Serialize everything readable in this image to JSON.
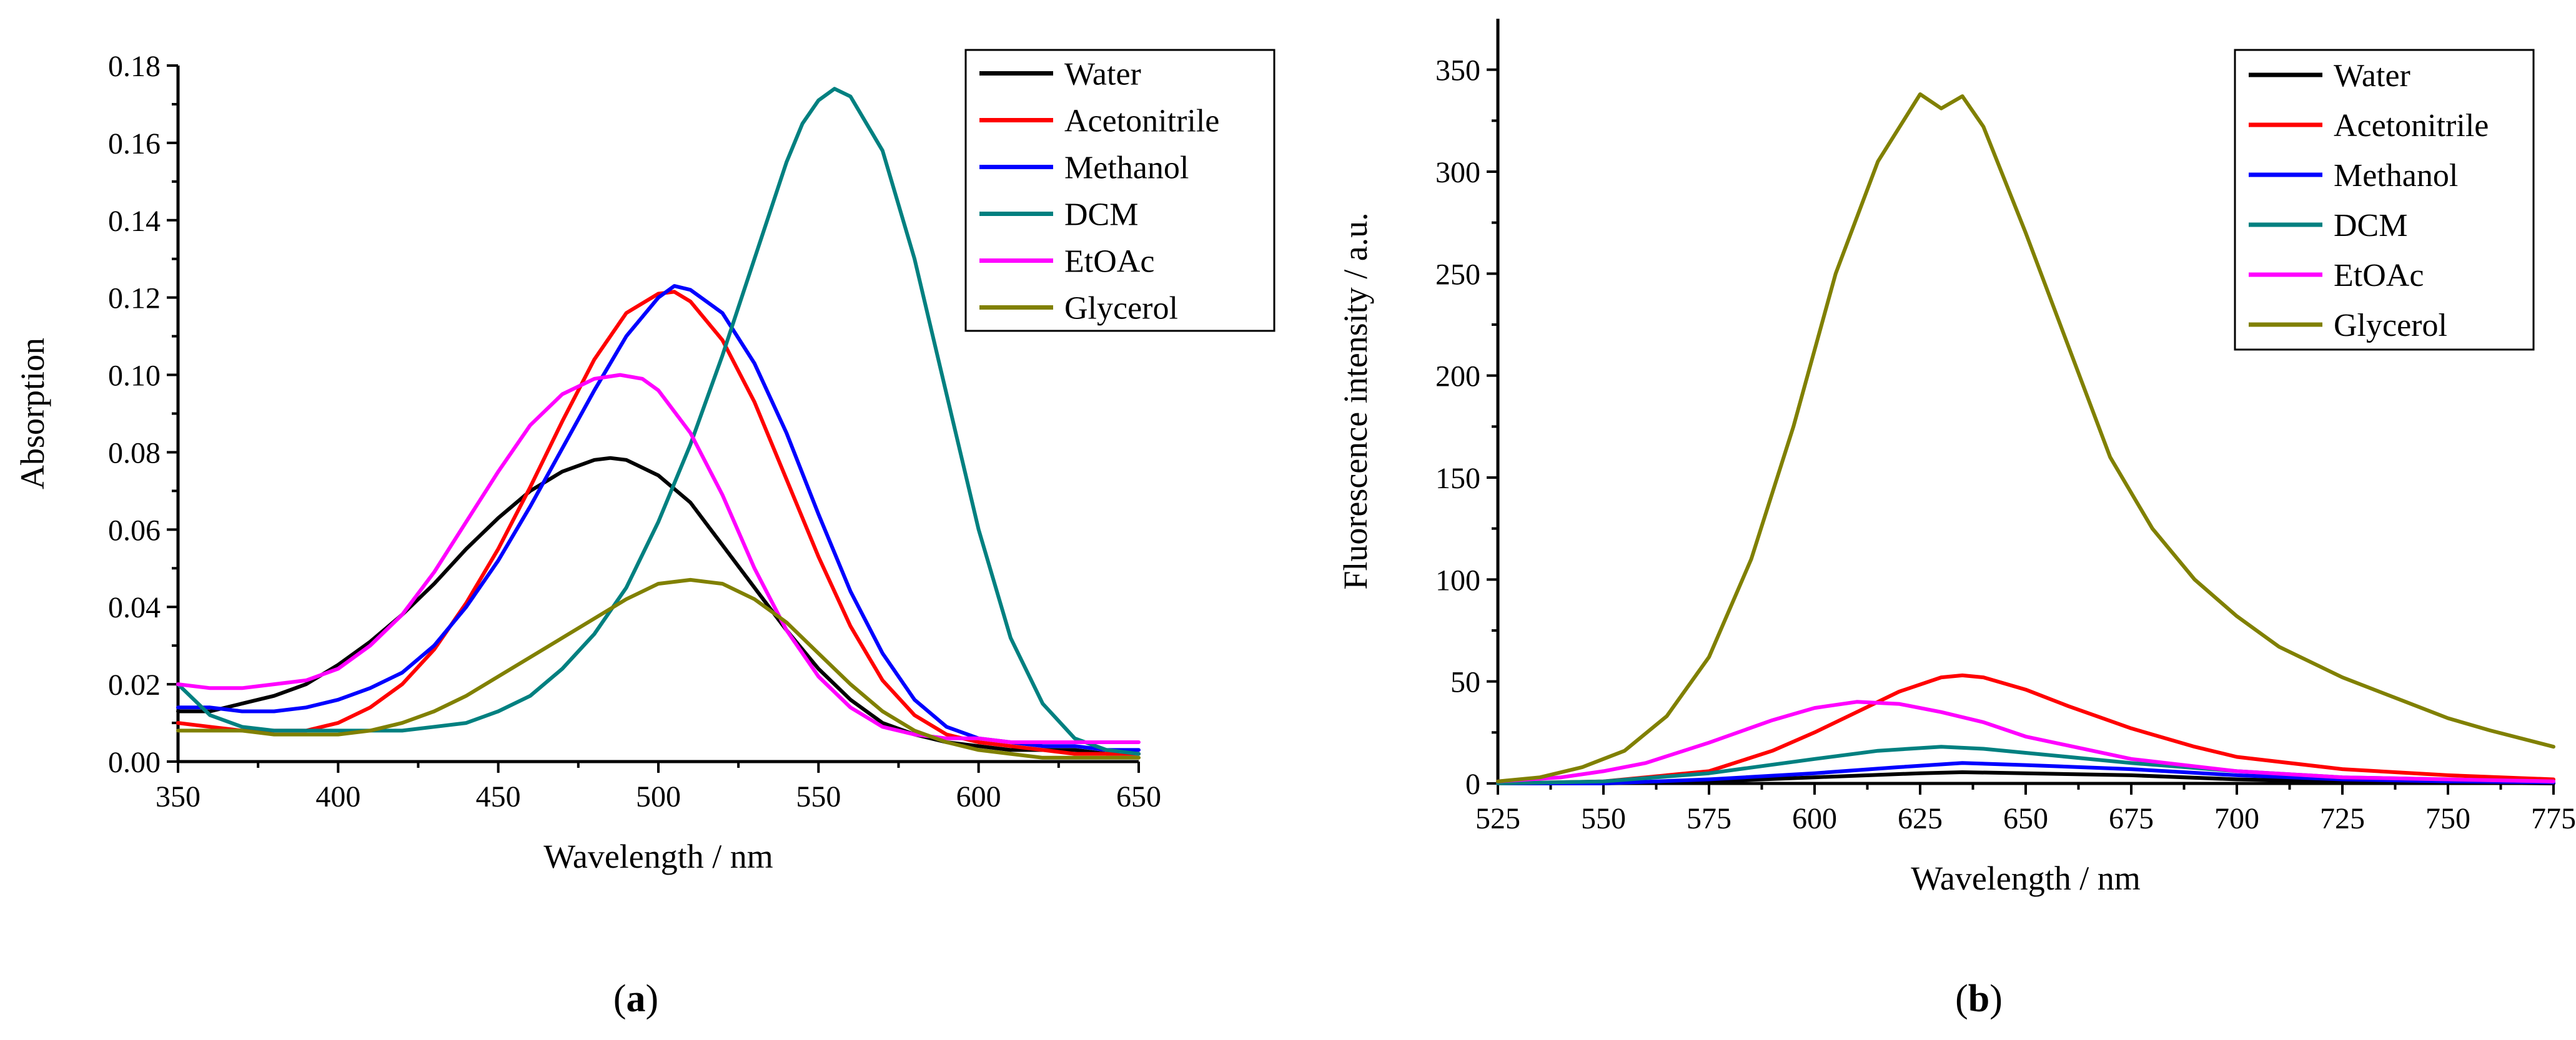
{
  "figure_labels": {
    "a": [
      "(",
      "a",
      ")"
    ],
    "b": [
      "(",
      "b",
      ")"
    ]
  },
  "colors": {
    "Water": "#000000",
    "Acetonitrile": "#ff0000",
    "Methanol": "#0000ff",
    "DCM": "#008080",
    "EtOAc": "#ff00ff",
    "Glycerol": "#808000"
  },
  "chart_data": [
    {
      "id": "a",
      "type": "line",
      "title": "",
      "xlabel": "Wavelength / nm",
      "ylabel": "Absorption",
      "xlim": [
        350,
        650
      ],
      "ylim": [
        0,
        0.18
      ],
      "xticks": [
        350,
        400,
        450,
        500,
        550,
        600,
        650
      ],
      "yticks": [
        0.0,
        0.02,
        0.04,
        0.06,
        0.08,
        0.1,
        0.12,
        0.14,
        0.16,
        0.18
      ],
      "ytick_decimals": 2,
      "grid": false,
      "legend_position": "top-right",
      "legend": [
        "Water",
        "Acetonitrile",
        "Methanol",
        "DCM",
        "EtOAc",
        "Glycerol"
      ],
      "series": [
        {
          "name": "Water",
          "x": [
            350,
            360,
            370,
            380,
            390,
            400,
            410,
            420,
            430,
            440,
            450,
            460,
            470,
            480,
            485,
            490,
            500,
            510,
            520,
            530,
            540,
            550,
            560,
            570,
            580,
            590,
            600,
            610,
            620,
            630,
            640,
            650
          ],
          "y": [
            0.013,
            0.013,
            0.015,
            0.017,
            0.02,
            0.025,
            0.031,
            0.038,
            0.046,
            0.055,
            0.063,
            0.07,
            0.075,
            0.078,
            0.0785,
            0.078,
            0.074,
            0.067,
            0.056,
            0.045,
            0.034,
            0.024,
            0.016,
            0.01,
            0.007,
            0.005,
            0.004,
            0.003,
            0.003,
            0.003,
            0.002,
            0.002
          ]
        },
        {
          "name": "Acetonitrile",
          "x": [
            350,
            360,
            370,
            380,
            390,
            400,
            410,
            420,
            430,
            440,
            450,
            460,
            470,
            480,
            490,
            500,
            505,
            510,
            520,
            530,
            540,
            550,
            560,
            570,
            580,
            590,
            600,
            610,
            620,
            630,
            640,
            650
          ],
          "y": [
            0.01,
            0.009,
            0.008,
            0.008,
            0.008,
            0.01,
            0.014,
            0.02,
            0.029,
            0.041,
            0.055,
            0.071,
            0.088,
            0.104,
            0.116,
            0.121,
            0.1215,
            0.119,
            0.109,
            0.093,
            0.073,
            0.053,
            0.035,
            0.021,
            0.012,
            0.007,
            0.005,
            0.004,
            0.003,
            0.002,
            0.002,
            0.002
          ]
        },
        {
          "name": "Methanol",
          "x": [
            350,
            360,
            370,
            380,
            390,
            400,
            410,
            420,
            430,
            440,
            450,
            460,
            470,
            480,
            490,
            500,
            505,
            510,
            520,
            530,
            540,
            550,
            560,
            570,
            580,
            590,
            600,
            610,
            620,
            630,
            640,
            650
          ],
          "y": [
            0.014,
            0.014,
            0.013,
            0.013,
            0.014,
            0.016,
            0.019,
            0.023,
            0.03,
            0.04,
            0.052,
            0.066,
            0.081,
            0.096,
            0.11,
            0.12,
            0.123,
            0.122,
            0.116,
            0.103,
            0.085,
            0.064,
            0.044,
            0.028,
            0.016,
            0.009,
            0.006,
            0.005,
            0.004,
            0.004,
            0.003,
            0.003
          ]
        },
        {
          "name": "DCM",
          "x": [
            350,
            360,
            370,
            380,
            390,
            400,
            410,
            420,
            430,
            440,
            450,
            460,
            470,
            480,
            490,
            500,
            510,
            520,
            530,
            540,
            545,
            550,
            555,
            560,
            570,
            580,
            590,
            600,
            610,
            620,
            630,
            640,
            650
          ],
          "y": [
            0.02,
            0.012,
            0.009,
            0.008,
            0.008,
            0.008,
            0.008,
            0.008,
            0.009,
            0.01,
            0.013,
            0.017,
            0.024,
            0.033,
            0.045,
            0.062,
            0.082,
            0.105,
            0.13,
            0.155,
            0.165,
            0.171,
            0.174,
            0.172,
            0.158,
            0.13,
            0.095,
            0.06,
            0.032,
            0.015,
            0.006,
            0.003,
            0.002
          ]
        },
        {
          "name": "EtOAc",
          "x": [
            350,
            360,
            370,
            380,
            390,
            400,
            410,
            420,
            430,
            440,
            450,
            460,
            470,
            480,
            488,
            495,
            500,
            510,
            520,
            530,
            540,
            550,
            560,
            570,
            580,
            590,
            600,
            610,
            620,
            630,
            640,
            650
          ],
          "y": [
            0.02,
            0.019,
            0.019,
            0.02,
            0.021,
            0.024,
            0.03,
            0.038,
            0.049,
            0.062,
            0.075,
            0.087,
            0.095,
            0.099,
            0.1,
            0.099,
            0.096,
            0.085,
            0.069,
            0.05,
            0.034,
            0.022,
            0.014,
            0.009,
            0.007,
            0.006,
            0.006,
            0.005,
            0.005,
            0.005,
            0.005,
            0.005
          ]
        },
        {
          "name": "Glycerol",
          "x": [
            350,
            360,
            370,
            380,
            390,
            400,
            410,
            420,
            430,
            440,
            450,
            460,
            470,
            480,
            490,
            500,
            510,
            520,
            530,
            540,
            550,
            560,
            570,
            580,
            590,
            600,
            610,
            620,
            630,
            640,
            650
          ],
          "y": [
            0.008,
            0.008,
            0.008,
            0.007,
            0.007,
            0.007,
            0.008,
            0.01,
            0.013,
            0.017,
            0.022,
            0.027,
            0.032,
            0.037,
            0.042,
            0.046,
            0.047,
            0.046,
            0.042,
            0.036,
            0.028,
            0.02,
            0.013,
            0.008,
            0.005,
            0.003,
            0.002,
            0.001,
            0.001,
            0.001,
            0.001
          ]
        }
      ]
    },
    {
      "id": "b",
      "type": "line",
      "title": "",
      "xlabel": "Wavelength / nm",
      "ylabel": "Fluorescence intensity / a.u.",
      "xlim": [
        525,
        775
      ],
      "ylim": [
        0,
        375
      ],
      "xticks": [
        525,
        550,
        575,
        600,
        625,
        650,
        675,
        700,
        725,
        750,
        775
      ],
      "yticks": [
        0,
        50,
        100,
        150,
        200,
        250,
        300,
        350
      ],
      "ytick_decimals": 0,
      "grid": false,
      "legend_position": "top-right",
      "legend": [
        "Water",
        "Acetonitrile",
        "Methanol",
        "DCM",
        "EtOAc",
        "Glycerol"
      ],
      "series": [
        {
          "name": "Water",
          "x": [
            525,
            550,
            575,
            600,
            625,
            635,
            650,
            675,
            700,
            725,
            750,
            775
          ],
          "y": [
            0,
            0,
            1,
            3,
            5,
            5.5,
            5,
            4,
            2,
            1,
            0.5,
            0
          ]
        },
        {
          "name": "Acetonitrile",
          "x": [
            525,
            550,
            575,
            590,
            600,
            610,
            620,
            630,
            635,
            640,
            650,
            660,
            675,
            690,
            700,
            725,
            750,
            775
          ],
          "y": [
            0,
            1,
            6,
            16,
            25,
            35,
            45,
            52,
            53,
            52,
            46,
            38,
            27,
            18,
            13,
            7,
            4,
            2
          ]
        },
        {
          "name": "Methanol",
          "x": [
            525,
            550,
            575,
            600,
            620,
            635,
            650,
            675,
            700,
            725,
            750,
            775
          ],
          "y": [
            0,
            0,
            2,
            5,
            8,
            10,
            9,
            7,
            4,
            2,
            1,
            0.5
          ]
        },
        {
          "name": "DCM",
          "x": [
            525,
            550,
            575,
            600,
            615,
            630,
            640,
            650,
            675,
            700,
            725,
            750,
            775
          ],
          "y": [
            0,
            1,
            5,
            12,
            16,
            18,
            17,
            15,
            10,
            6,
            3,
            2,
            1
          ]
        },
        {
          "name": "EtOAc",
          "x": [
            525,
            540,
            550,
            560,
            575,
            590,
            600,
            610,
            620,
            630,
            640,
            650,
            675,
            700,
            725,
            750,
            775
          ],
          "y": [
            1,
            3,
            6,
            10,
            20,
            31,
            37,
            40,
            39,
            35,
            30,
            23,
            12,
            6,
            3,
            2,
            1
          ]
        },
        {
          "name": "Glycerol",
          "x": [
            525,
            535,
            545,
            555,
            565,
            575,
            585,
            595,
            605,
            615,
            625,
            630,
            635,
            640,
            650,
            660,
            670,
            680,
            690,
            700,
            710,
            725,
            740,
            750,
            760,
            775
          ],
          "y": [
            1,
            3,
            8,
            16,
            33,
            62,
            110,
            175,
            250,
            305,
            338,
            331,
            337,
            322,
            270,
            215,
            160,
            125,
            100,
            82,
            67,
            52,
            40,
            32,
            26,
            18
          ]
        }
      ]
    }
  ]
}
